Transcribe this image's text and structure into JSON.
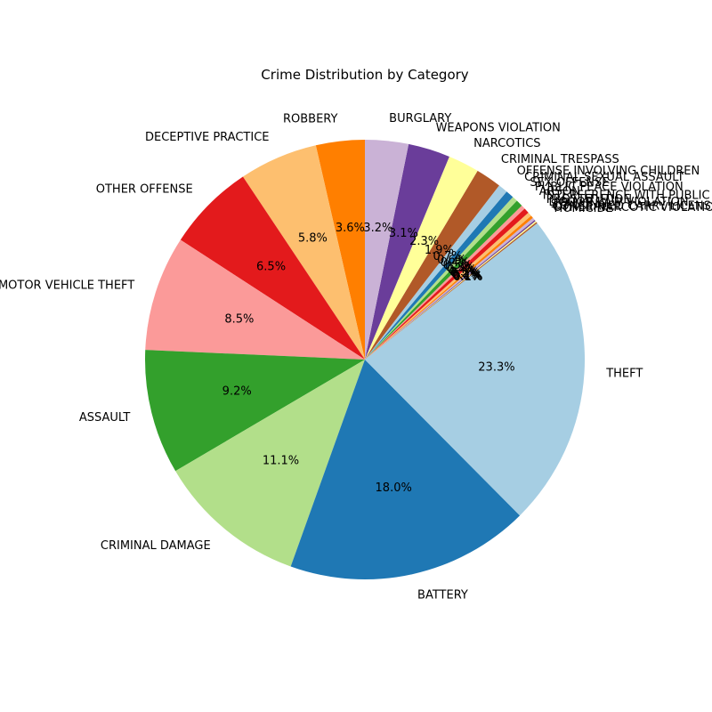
{
  "chart_data": {
    "type": "pie",
    "title": "Crime Distribution by Category",
    "start_angle_deg": 90,
    "direction": "counterclockwise",
    "slices": [
      {
        "label": "ROBBERY",
        "value": 3.6,
        "pct_label": "3.6%",
        "color": "#ff7f00"
      },
      {
        "label": "DECEPTIVE PRACTICE",
        "value": 5.8,
        "pct_label": "5.8%",
        "color": "#fdbf6f"
      },
      {
        "label": "OTHER OFFENSE",
        "value": 6.5,
        "pct_label": "6.5%",
        "color": "#e31a1c"
      },
      {
        "label": "MOTOR VEHICLE THEFT",
        "value": 8.5,
        "pct_label": "8.5%",
        "color": "#fb9a99"
      },
      {
        "label": "ASSAULT",
        "value": 9.2,
        "pct_label": "9.2%",
        "color": "#33a02c"
      },
      {
        "label": "CRIMINAL DAMAGE",
        "value": 11.1,
        "pct_label": "11.1%",
        "color": "#b2df8a"
      },
      {
        "label": "BATTERY",
        "value": 18.0,
        "pct_label": "18.0%",
        "color": "#1f78b4"
      },
      {
        "label": "THEFT",
        "value": 23.3,
        "pct_label": "23.3%",
        "color": "#a6cee3"
      },
      {
        "label": "HOMICIDE",
        "value": 0.1,
        "pct_label": "0.1%",
        "color": "#b15928"
      },
      {
        "label": "OTHER NARCOTIC VIOLATION",
        "value": 0.1,
        "pct_label": "0.1%",
        "color": "#ffff99"
      },
      {
        "label": "CONCEALED CARRY LICENSE VIOLATION",
        "value": 0.1,
        "pct_label": "0.1%",
        "color": "#6a3d9a"
      },
      {
        "label": "STALKING",
        "value": 0.2,
        "pct_label": "0.2%",
        "color": "#cab2d6"
      },
      {
        "label": "LIQUOR LAW VIOLATION",
        "value": 0.2,
        "pct_label": "0.2%",
        "color": "#ff7f00"
      },
      {
        "label": "PROSTITUTION",
        "value": 0.3,
        "pct_label": "0.3%",
        "color": "#fdbf6f"
      },
      {
        "label": "INTERFERENCE WITH PUBLIC OFFICER",
        "value": 0.4,
        "pct_label": "0.4%",
        "color": "#e31a1c"
      },
      {
        "label": "ARSON",
        "value": 0.3,
        "pct_label": "0.3%",
        "color": "#fb9a99"
      },
      {
        "label": "PUBLIC PEACE VIOLATION",
        "value": 0.5,
        "pct_label": "0.5%",
        "color": "#33a02c"
      },
      {
        "label": "SEX OFFENSE",
        "value": 0.4,
        "pct_label": "0.4%",
        "color": "#b2df8a"
      },
      {
        "label": "CRIMINAL SEXUAL ASSAULT",
        "value": 0.6,
        "pct_label": "0.6%",
        "color": "#1f78b4"
      },
      {
        "label": "OFFENSE INVOLVING CHILDREN",
        "value": 0.7,
        "pct_label": "0.7%",
        "color": "#a6cee3"
      },
      {
        "label": "CRIMINAL TRESPASS",
        "value": 1.9,
        "pct_label": "1.9%",
        "color": "#b15928"
      },
      {
        "label": "NARCOTICS",
        "value": 2.3,
        "pct_label": "2.3%",
        "color": "#ffff99"
      },
      {
        "label": "WEAPONS VIOLATION",
        "value": 3.1,
        "pct_label": "3.1%",
        "color": "#6a3d9a"
      },
      {
        "label": "BURGLARY",
        "value": 3.2,
        "pct_label": "3.2%",
        "color": "#cab2d6"
      }
    ]
  }
}
